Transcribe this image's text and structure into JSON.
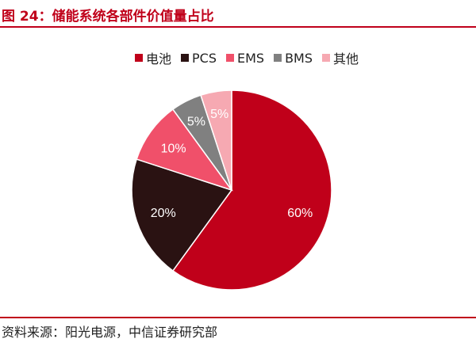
{
  "figure": {
    "title": "图 24：储能系统各部件价值量占比",
    "source": "资料来源：阳光电源，中信证券研究部"
  },
  "chart_data": {
    "type": "pie",
    "categories": [
      "电池",
      "PCS",
      "EMS",
      "BMS",
      "其他"
    ],
    "values": [
      60,
      20,
      10,
      5,
      5
    ],
    "labels": [
      "60%",
      "20%",
      "10%",
      "5%",
      "5%"
    ],
    "colors": [
      "#c0001a",
      "#2a1212",
      "#f0506a",
      "#808080",
      "#f6a9b2"
    ],
    "label_colors": [
      "#ffffff",
      "#ffffff",
      "#ffffff",
      "#ffffff",
      "#ffffff"
    ],
    "legend": "top"
  }
}
